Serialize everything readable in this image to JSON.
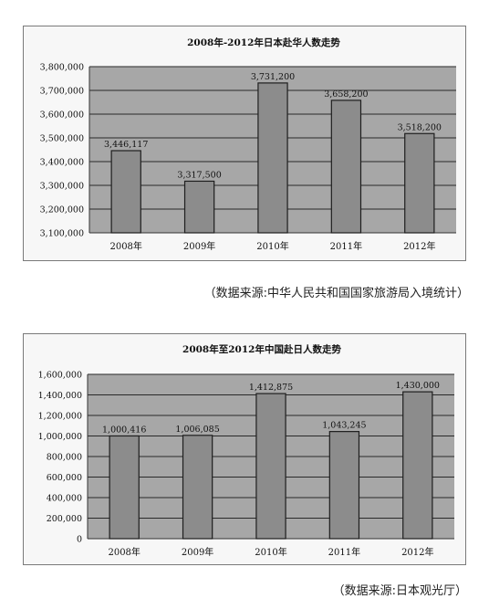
{
  "chart_data": [
    {
      "type": "bar",
      "title": "2008年-2012年日本赴华人数走势",
      "categories": [
        "2008年",
        "2009年",
        "2010年",
        "2011年",
        "2012年"
      ],
      "values": [
        3446117,
        3317500,
        3731200,
        3658200,
        3518200
      ],
      "value_labels": [
        "3,446,117",
        "3,317,500",
        "3,731,200",
        "3,658,200",
        "3,518,200"
      ],
      "ylim": [
        3100000,
        3800000
      ],
      "yticks": [
        3100000,
        3200000,
        3300000,
        3400000,
        3500000,
        3600000,
        3700000,
        3800000
      ],
      "ytick_labels": [
        "3,100,000",
        "3,200,000",
        "3,300,000",
        "3,400,000",
        "3,500,000",
        "3,600,000",
        "3,700,000",
        "3,800,000"
      ],
      "grid": true,
      "colors": {
        "bar": "#8c8c8c",
        "plot_bg": "#a7a7a7"
      }
    },
    {
      "type": "bar",
      "title": "2008年至2012年中国赴日人数走势",
      "categories": [
        "2008年",
        "2009年",
        "2010年",
        "2011年",
        "2012年"
      ],
      "values": [
        1000416,
        1006085,
        1412875,
        1043245,
        1430000
      ],
      "value_labels": [
        "1,000,416",
        "1,006,085",
        "1,412,875",
        "1,043,245",
        "1,430,000"
      ],
      "ylim": [
        0,
        1600000
      ],
      "yticks": [
        0,
        200000,
        400000,
        600000,
        800000,
        1000000,
        1200000,
        1400000,
        1600000
      ],
      "ytick_labels": [
        "0",
        "200,000",
        "400,000",
        "600,000",
        "800,000",
        "1,000,000",
        "1,200,000",
        "1,400,000",
        "1,600,000"
      ],
      "grid": true,
      "colors": {
        "bar": "#8c8c8c",
        "plot_bg": "#a7a7a7"
      }
    }
  ],
  "sources": {
    "chart1": "（数据来源:中华人民共和国国家旅游局入境统计）",
    "chart2": "（数据来源:日本观光厅）"
  }
}
